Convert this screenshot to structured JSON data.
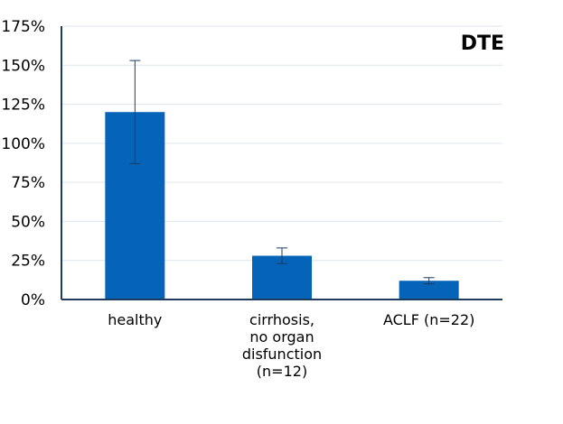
{
  "chart_data": {
    "type": "bar",
    "title": "DTE",
    "xlabel": "",
    "ylabel": "",
    "categories": [
      [
        "healthy"
      ],
      [
        "cirrhosis,",
        "no organ",
        "disfunction",
        "(n=12)"
      ],
      [
        "ACLF (n=22)"
      ]
    ],
    "values": [
      120,
      28,
      12
    ],
    "error_high": [
      153,
      33,
      14
    ],
    "error_low": [
      87,
      23,
      10
    ],
    "ylim": [
      0,
      175
    ],
    "yticks": [
      0,
      25,
      50,
      75,
      100,
      125,
      150,
      175
    ],
    "ytick_labels": [
      "0%",
      "25%",
      "50%",
      "75%",
      "100%",
      "125%",
      "150%",
      "175%"
    ],
    "grid": true,
    "legend": "none",
    "bar_color": "#0563b8",
    "grid_color": "#dde6ee",
    "axis_color": "#1f3a5f"
  }
}
